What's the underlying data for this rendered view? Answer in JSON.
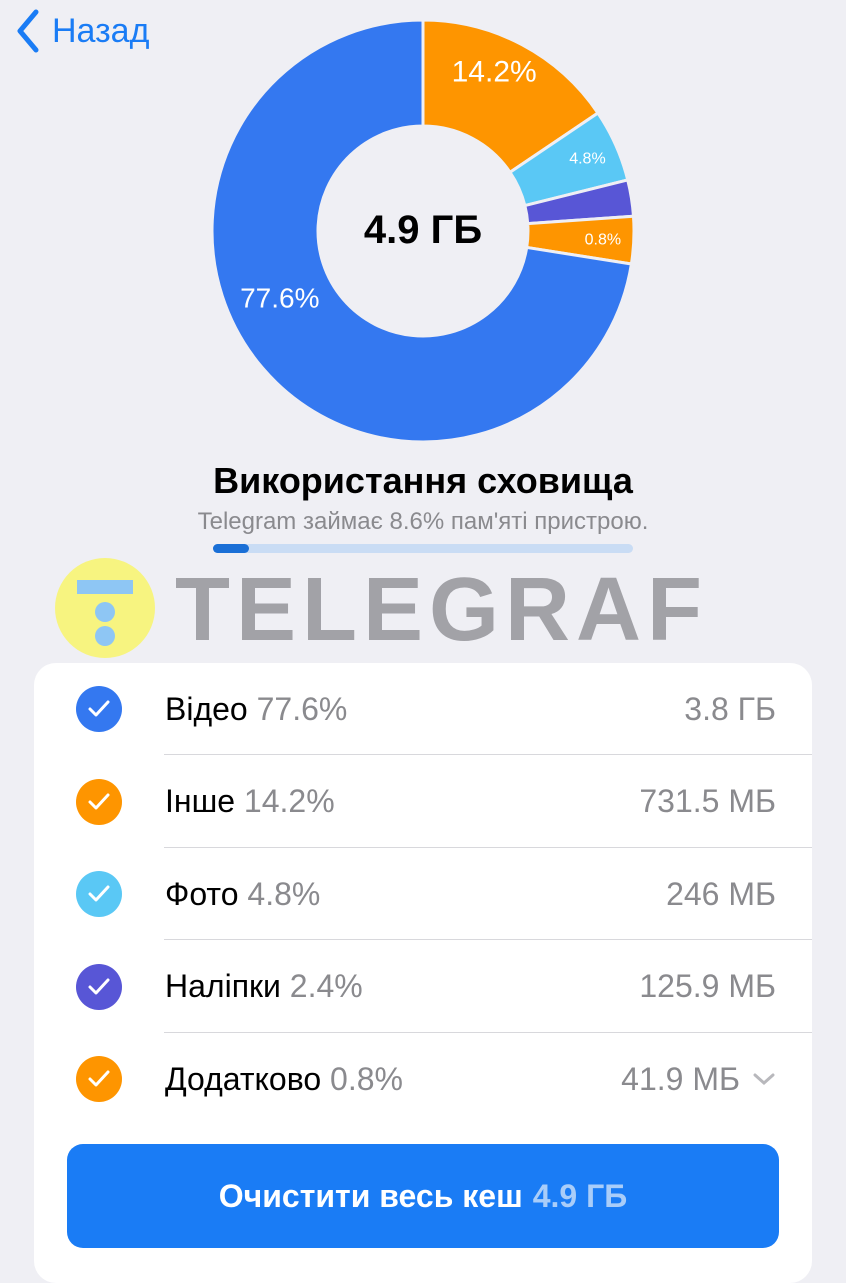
{
  "nav": {
    "back_label": "Назад"
  },
  "chart_data": {
    "type": "pie",
    "center_label": "4.9 ГБ",
    "slices": [
      {
        "label": "Інше",
        "value": 14.2,
        "text": "14.2%",
        "color": "#fe9500"
      },
      {
        "label": "Фото",
        "value": 4.8,
        "text": "4.8%",
        "color": "#5ac8f5"
      },
      {
        "label": "Наліпки",
        "value": 2.4,
        "text": "",
        "color": "#5856d6"
      },
      {
        "label": "Додатково",
        "value": 0.8,
        "text": "0.8%",
        "color": "#fe9500"
      },
      {
        "label": "Відео",
        "value": 77.6,
        "text": "77.6%",
        "color": "#3478f0"
      }
    ]
  },
  "storage": {
    "title": "Використання сховища",
    "subtitle": "Telegram займає 8.6% пам'яті пристрою.",
    "usage_percent": 8.6
  },
  "watermark": "TELEGRAF",
  "categories": [
    {
      "name": "Відео",
      "percent": "77.6%",
      "size": "3.8 ГБ",
      "color": "#3478f0",
      "checked": true
    },
    {
      "name": "Інше",
      "percent": "14.2%",
      "size": "731.5 МБ",
      "color": "#fe9500",
      "checked": true
    },
    {
      "name": "Фото",
      "percent": "4.8%",
      "size": "246 МБ",
      "color": "#5ac8f5",
      "checked": true
    },
    {
      "name": "Наліпки",
      "percent": "2.4%",
      "size": "125.9 МБ",
      "color": "#5856d6",
      "checked": true
    },
    {
      "name": "Додатково",
      "percent": "0.8%",
      "size": "41.9 МБ",
      "color": "#fe9500",
      "checked": true,
      "expandable": true
    }
  ],
  "clear_button": {
    "label": "Очистити весь кеш",
    "size": "4.9 ГБ"
  }
}
